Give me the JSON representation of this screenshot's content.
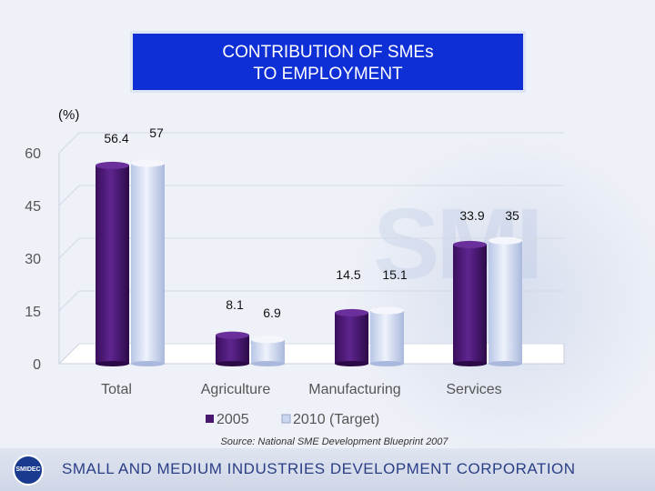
{
  "slide": {
    "title_line1": "CONTRIBUTION OF SMEs",
    "title_line2": "TO EMPLOYMENT",
    "unit_label": "(%)",
    "source": "Source: National SME Development Blueprint 2007",
    "footer_text": "SMALL AND MEDIUM INDUSTRIES DEVELOPMENT CORPORATION",
    "logo_text": "SMIDEC"
  },
  "chart_data": {
    "type": "bar",
    "title": "CONTRIBUTION OF SMEs TO EMPLOYMENT",
    "ylabel": "(%)",
    "xlabel": "",
    "categories": [
      "Total",
      "Agriculture",
      "Manufacturing",
      "Services"
    ],
    "series": [
      {
        "name": "2005",
        "values": [
          56.4,
          8.1,
          14.5,
          33.9
        ],
        "labels": [
          "56.4",
          "8.1",
          "14.5",
          "33.9"
        ],
        "color": "#4a1770"
      },
      {
        "name": "2010 (Target)",
        "values": [
          57,
          6.9,
          15.1,
          35
        ],
        "labels": [
          "57",
          "6.9",
          "15.1",
          "35"
        ],
        "color": "#c9d6ef"
      }
    ],
    "ylim": [
      0,
      60
    ],
    "yticks": [
      0,
      15,
      30,
      45,
      60
    ],
    "ytick_labels": [
      "0",
      "15",
      "30",
      "45",
      "60"
    ],
    "legend_position": "bottom",
    "grid": true
  }
}
